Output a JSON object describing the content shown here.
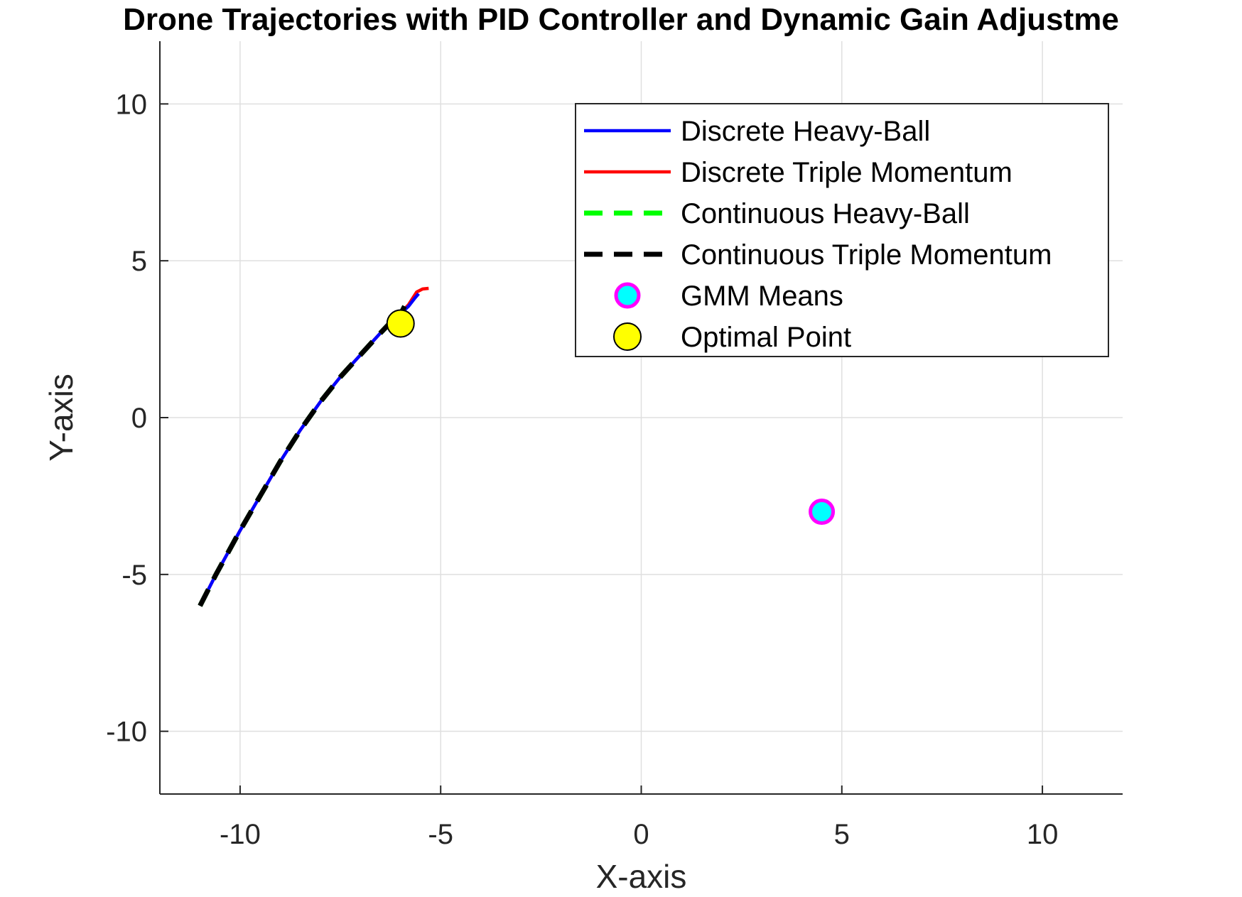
{
  "chart_data": {
    "type": "line",
    "title": "Drone Trajectories with PID Controller and Dynamic Gain Adjustme",
    "xlabel": "X-axis",
    "ylabel": "Y-axis",
    "xlim": [
      -12,
      12
    ],
    "ylim": [
      -12,
      12
    ],
    "xticks": [
      -10,
      -5,
      0,
      5,
      10
    ],
    "yticks": [
      -10,
      -5,
      0,
      5,
      10
    ],
    "xtick_labels": [
      "-10",
      "-5",
      "0",
      "5",
      "10"
    ],
    "ytick_labels": [
      "-10",
      "-5",
      "0",
      "5",
      "10"
    ],
    "grid": true,
    "legend_position": "top-right",
    "series": [
      {
        "name": "Discrete Heavy-Ball",
        "color": "#0000ff",
        "style": "solid",
        "x": [
          -11.0,
          -10.6,
          -10.0,
          -9.5,
          -9.0,
          -8.5,
          -8.0,
          -7.5,
          -7.0,
          -6.5,
          -6.1,
          -5.8,
          -5.65,
          -5.55
        ],
        "y": [
          -6.0,
          -5.0,
          -3.6,
          -2.5,
          -1.4,
          -0.4,
          0.5,
          1.3,
          2.0,
          2.7,
          3.2,
          3.55,
          3.8,
          3.95
        ]
      },
      {
        "name": "Discrete Triple Momentum",
        "color": "#ff0000",
        "style": "solid",
        "x": [
          -11.0,
          -10.6,
          -10.0,
          -9.5,
          -9.0,
          -8.5,
          -8.0,
          -7.5,
          -7.0,
          -6.5,
          -6.1,
          -5.8,
          -5.6,
          -5.45,
          -5.3
        ],
        "y": [
          -6.0,
          -5.0,
          -3.6,
          -2.5,
          -1.4,
          -0.4,
          0.5,
          1.3,
          2.0,
          2.7,
          3.2,
          3.6,
          4.0,
          4.1,
          4.12
        ]
      },
      {
        "name": "Continuous Heavy-Ball",
        "color": "#00ff00",
        "style": "dashed",
        "x": [
          -11.0,
          -10.6,
          -10.0,
          -9.5,
          -9.0,
          -8.5,
          -8.0,
          -7.5,
          -7.0,
          -6.5,
          -6.2,
          -6.0,
          -5.9
        ],
        "y": [
          -6.0,
          -5.0,
          -3.6,
          -2.5,
          -1.4,
          -0.4,
          0.5,
          1.3,
          2.0,
          2.7,
          3.1,
          3.3,
          3.55
        ]
      },
      {
        "name": "Continuous Triple Momentum",
        "color": "#000000",
        "style": "dashed",
        "x": [
          -11.0,
          -10.6,
          -10.0,
          -9.5,
          -9.0,
          -8.5,
          -8.0,
          -7.5,
          -7.0,
          -6.5,
          -6.2,
          -6.0,
          -5.9
        ],
        "y": [
          -6.0,
          -5.0,
          -3.6,
          -2.5,
          -1.4,
          -0.4,
          0.5,
          1.3,
          2.0,
          2.7,
          3.1,
          3.3,
          3.55
        ]
      }
    ],
    "markers": [
      {
        "name": "GMM Means",
        "x": 4.5,
        "y": -3.0,
        "fill": "#00ffff",
        "edge": "#ff00ff"
      },
      {
        "name": "Optimal Point",
        "x": -6.0,
        "y": 3.0,
        "fill": "#ffff00",
        "edge": "#000000"
      }
    ]
  }
}
